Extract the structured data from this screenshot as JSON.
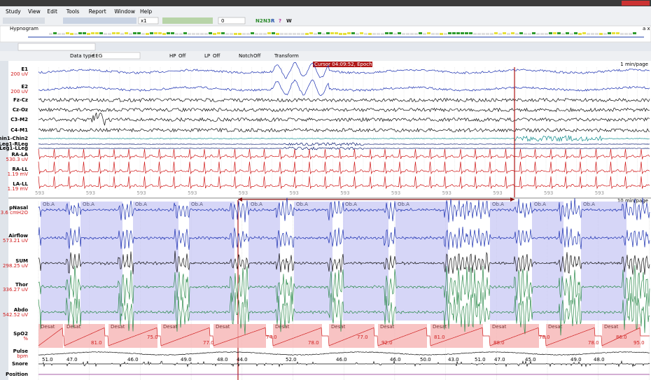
{
  "menu": [
    "Study",
    "View",
    "Edit",
    "Tools",
    "Report",
    "Window",
    "Help"
  ],
  "toolbar": {
    "zoom": "x1",
    "counter": "0",
    "stages": [
      "N2",
      "N3",
      "R",
      "?",
      "W"
    ]
  },
  "hypnogram": {
    "title": "Hypnogram",
    "close": "a x"
  },
  "filters": {
    "data_type_label": "Data type",
    "data_type": "EEG",
    "hp_label": "HP",
    "hp": "Off",
    "lp_label": "LP",
    "lp": "Off",
    "notch_label": "Notch",
    "notch": "Off",
    "transform": "Transform"
  },
  "cursor": "Cursor 04:09:52, Epoch: 593 - REM",
  "top_pane": {
    "page": "1 min/page",
    "epoch_label": "593",
    "channels": [
      {
        "name": "E1",
        "scale": "200 uV"
      },
      {
        "name": "E2",
        "scale": "200 uV"
      },
      {
        "name": "Fz-Cz"
      },
      {
        "name": "Cz-Oz"
      },
      {
        "name": "C3-M2"
      },
      {
        "name": "C4-M1"
      },
      {
        "name": "Chin1-Chin2"
      },
      {
        "name": "Leg1-RLeg"
      },
      {
        "name": "Leg1-LLeg"
      },
      {
        "name": "RA-LA",
        "scale": "530.3 uV"
      },
      {
        "name": "RA-LL",
        "scale": "1.19 mV"
      },
      {
        "name": "LA-LL",
        "scale": "1.19 mV"
      }
    ]
  },
  "bottom_pane": {
    "page": "10 min/page",
    "apnea_label": "Ob.A",
    "desat_label": "Desat",
    "channels": [
      {
        "name": "pNasal",
        "scale": "3.6 cmH2O"
      },
      {
        "name": "Airflow",
        "scale": "573.21 uV"
      },
      {
        "name": "SUM",
        "scale": "298.25 uV"
      },
      {
        "name": "Thor",
        "scale": "336.27 uV"
      },
      {
        "name": "Abdo",
        "scale": "542.52 uV"
      },
      {
        "name": "SpO2",
        "scale": "%"
      },
      {
        "name": "Pulse",
        "scale": "bpm"
      },
      {
        "name": "Snore"
      },
      {
        "name": "Position"
      }
    ],
    "spo2_values": [
      "81.0",
      "75.0",
      "77.0",
      "74.0",
      "78.0",
      "77.0",
      "92.0",
      "81.0",
      "88.0",
      "78.0",
      "78.0",
      "86.0",
      "95.0"
    ],
    "pulse_values": [
      "51.0",
      "47.0",
      "46.0",
      "49.0",
      "48.0",
      "44.0",
      "52.0",
      "46.0",
      "46.0",
      "50.0",
      "43.0",
      "51.0",
      "47.0",
      "45.0",
      "49.0",
      "48.0"
    ]
  }
}
